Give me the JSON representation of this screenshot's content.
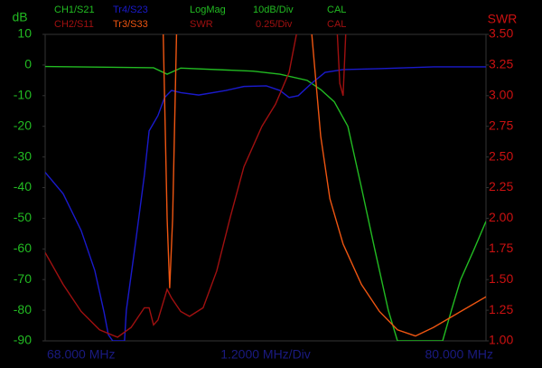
{
  "chart_data": {
    "type": "line",
    "ylabel": "dB",
    "y2label": "SWR",
    "xlim": [
      68,
      80
    ],
    "ylim": [
      -90,
      10
    ],
    "yticks": [
      10,
      0,
      -10,
      -20,
      -30,
      -40,
      -50,
      -60,
      -70,
      -80,
      -90
    ],
    "y2lim": [
      1,
      3.5
    ],
    "y2ticks": [
      {
        "value": 3.5,
        "label": "3.50"
      },
      3.25,
      {
        "value": 3,
        "label": "3.00"
      },
      2.75,
      {
        "value": 2.5,
        "label": "2.50"
      },
      2.25,
      {
        "value": 2,
        "label": "2.00"
      },
      1.75,
      {
        "value": 1.5,
        "label": "1.50"
      },
      1.25,
      {
        "value": 1,
        "label": "1.00"
      }
    ],
    "x_start_label": "68.000 MHz",
    "x_div_label": "1.2000 MHz/Div",
    "x_end_label": "80.000 MHz",
    "header": {
      "row1": {
        "format": "LogMag",
        "scale": "10dB/Div",
        "state": "CAL"
      },
      "row2": {
        "format": "SWR",
        "scale": "0.25/Div",
        "state": "CAL"
      }
    },
    "series": [
      {
        "name": "CH1/S21",
        "color": "#22bb22",
        "x": [
          68.0,
          70.95,
          71.32,
          71.69,
          73.66,
          74.39,
          75.13,
          75.5,
          75.87,
          76.24,
          76.61,
          76.97,
          77.34,
          77.59,
          78.82,
          79.06,
          79.31,
          79.68,
          80.0
        ],
        "values": [
          -0.5,
          -0.9,
          -3,
          -1,
          -2,
          -3,
          -5,
          -8,
          -12,
          -20,
          -40,
          -60,
          -80,
          -90,
          -90,
          -80,
          -70,
          -60,
          -51
        ]
      },
      {
        "name": "Tr4/S23",
        "color": "#1a1acc",
        "x": [
          68.0,
          68.49,
          68.98,
          69.35,
          69.6,
          69.72,
          69.84,
          70.16,
          70.21,
          70.46,
          70.7,
          70.83,
          71.07,
          71.25,
          71.44,
          71.69,
          72.18,
          72.92,
          73.41,
          74.02,
          74.39,
          74.64,
          74.89,
          75.25,
          75.62,
          76.11,
          77.1,
          78.57,
          80.0
        ],
        "values": [
          -35,
          -42,
          -54,
          -67,
          -80.5,
          -88,
          -90,
          -90,
          -80,
          -58,
          -36,
          -21.5,
          -16.5,
          -10.6,
          -8.3,
          -9,
          -9.8,
          -8.3,
          -7,
          -6.8,
          -8.3,
          -10.6,
          -10,
          -6,
          -2.4,
          -1.5,
          -1.2,
          -0.6,
          -0.6
        ]
      },
      {
        "name": "CH2/S11",
        "color": "#a01010",
        "axis": "y2",
        "x": [
          68.0,
          68.49,
          68.98,
          69.48,
          69.97,
          70.34,
          70.7,
          70.83,
          70.95,
          71.07,
          71.32,
          71.44,
          71.69,
          71.93,
          72.3,
          72.67,
          73.04,
          73.41,
          73.9,
          74.27,
          74.64,
          74.84,
          74.93,
          75.5,
          75.92,
          76.02,
          76.11,
          76.21
        ],
        "values": [
          1.72,
          1.46,
          1.24,
          1.09,
          1.03,
          1.11,
          1.27,
          1.27,
          1.13,
          1.17,
          1.42,
          1.35,
          1.24,
          1.2,
          1.27,
          1.57,
          2.01,
          2.42,
          2.75,
          2.93,
          3.19,
          3.5,
          3.7,
          null,
          3.7,
          3.1,
          3.0,
          3.7
        ]
      },
      {
        "name": "Tr3/S33",
        "color": "#ee5511",
        "axis": "y2",
        "x": [
          71.2,
          71.32,
          71.39,
          71.47,
          71.59,
          73.0,
          75.2,
          75.5,
          75.75,
          76.11,
          76.61,
          77.1,
          77.59,
          78.08,
          78.57,
          79.31,
          80.0
        ],
        "values": [
          3.7,
          2.0,
          1.43,
          2.0,
          3.7,
          null,
          3.7,
          2.67,
          2.16,
          1.79,
          1.46,
          1.24,
          1.09,
          1.04,
          1.11,
          1.24,
          1.36
        ]
      }
    ]
  }
}
